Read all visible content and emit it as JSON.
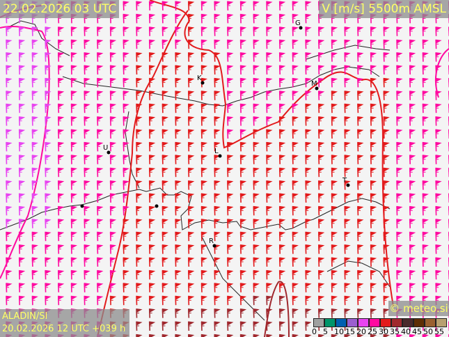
{
  "header": {
    "valid_time": "22.02.2026 03 UTC",
    "parameter": "V [m/s] 5500m AMSL"
  },
  "footer": {
    "model": "ALADIN/SI",
    "run": "20.02.2026 12 UTC +039 h",
    "credit": "© meteo.si"
  },
  "legend": {
    "labels": [
      "0",
      "5",
      "10",
      "15",
      "20",
      "25",
      "30",
      "35",
      "40",
      "45",
      "50",
      "55"
    ],
    "colors": [
      "#a0a0a0",
      "#00956a",
      "#0060b0",
      "#9b5fcf",
      "#e844f0",
      "#ff0aa0",
      "#e31a1c",
      "#a0282e",
      "#4a2a2c",
      "#5e2e05",
      "#9a6030",
      "#b8a070"
    ]
  },
  "cities": [
    "G",
    "K",
    "M",
    "U",
    "L",
    "T",
    "R"
  ],
  "wind_direction": "southerly"
}
